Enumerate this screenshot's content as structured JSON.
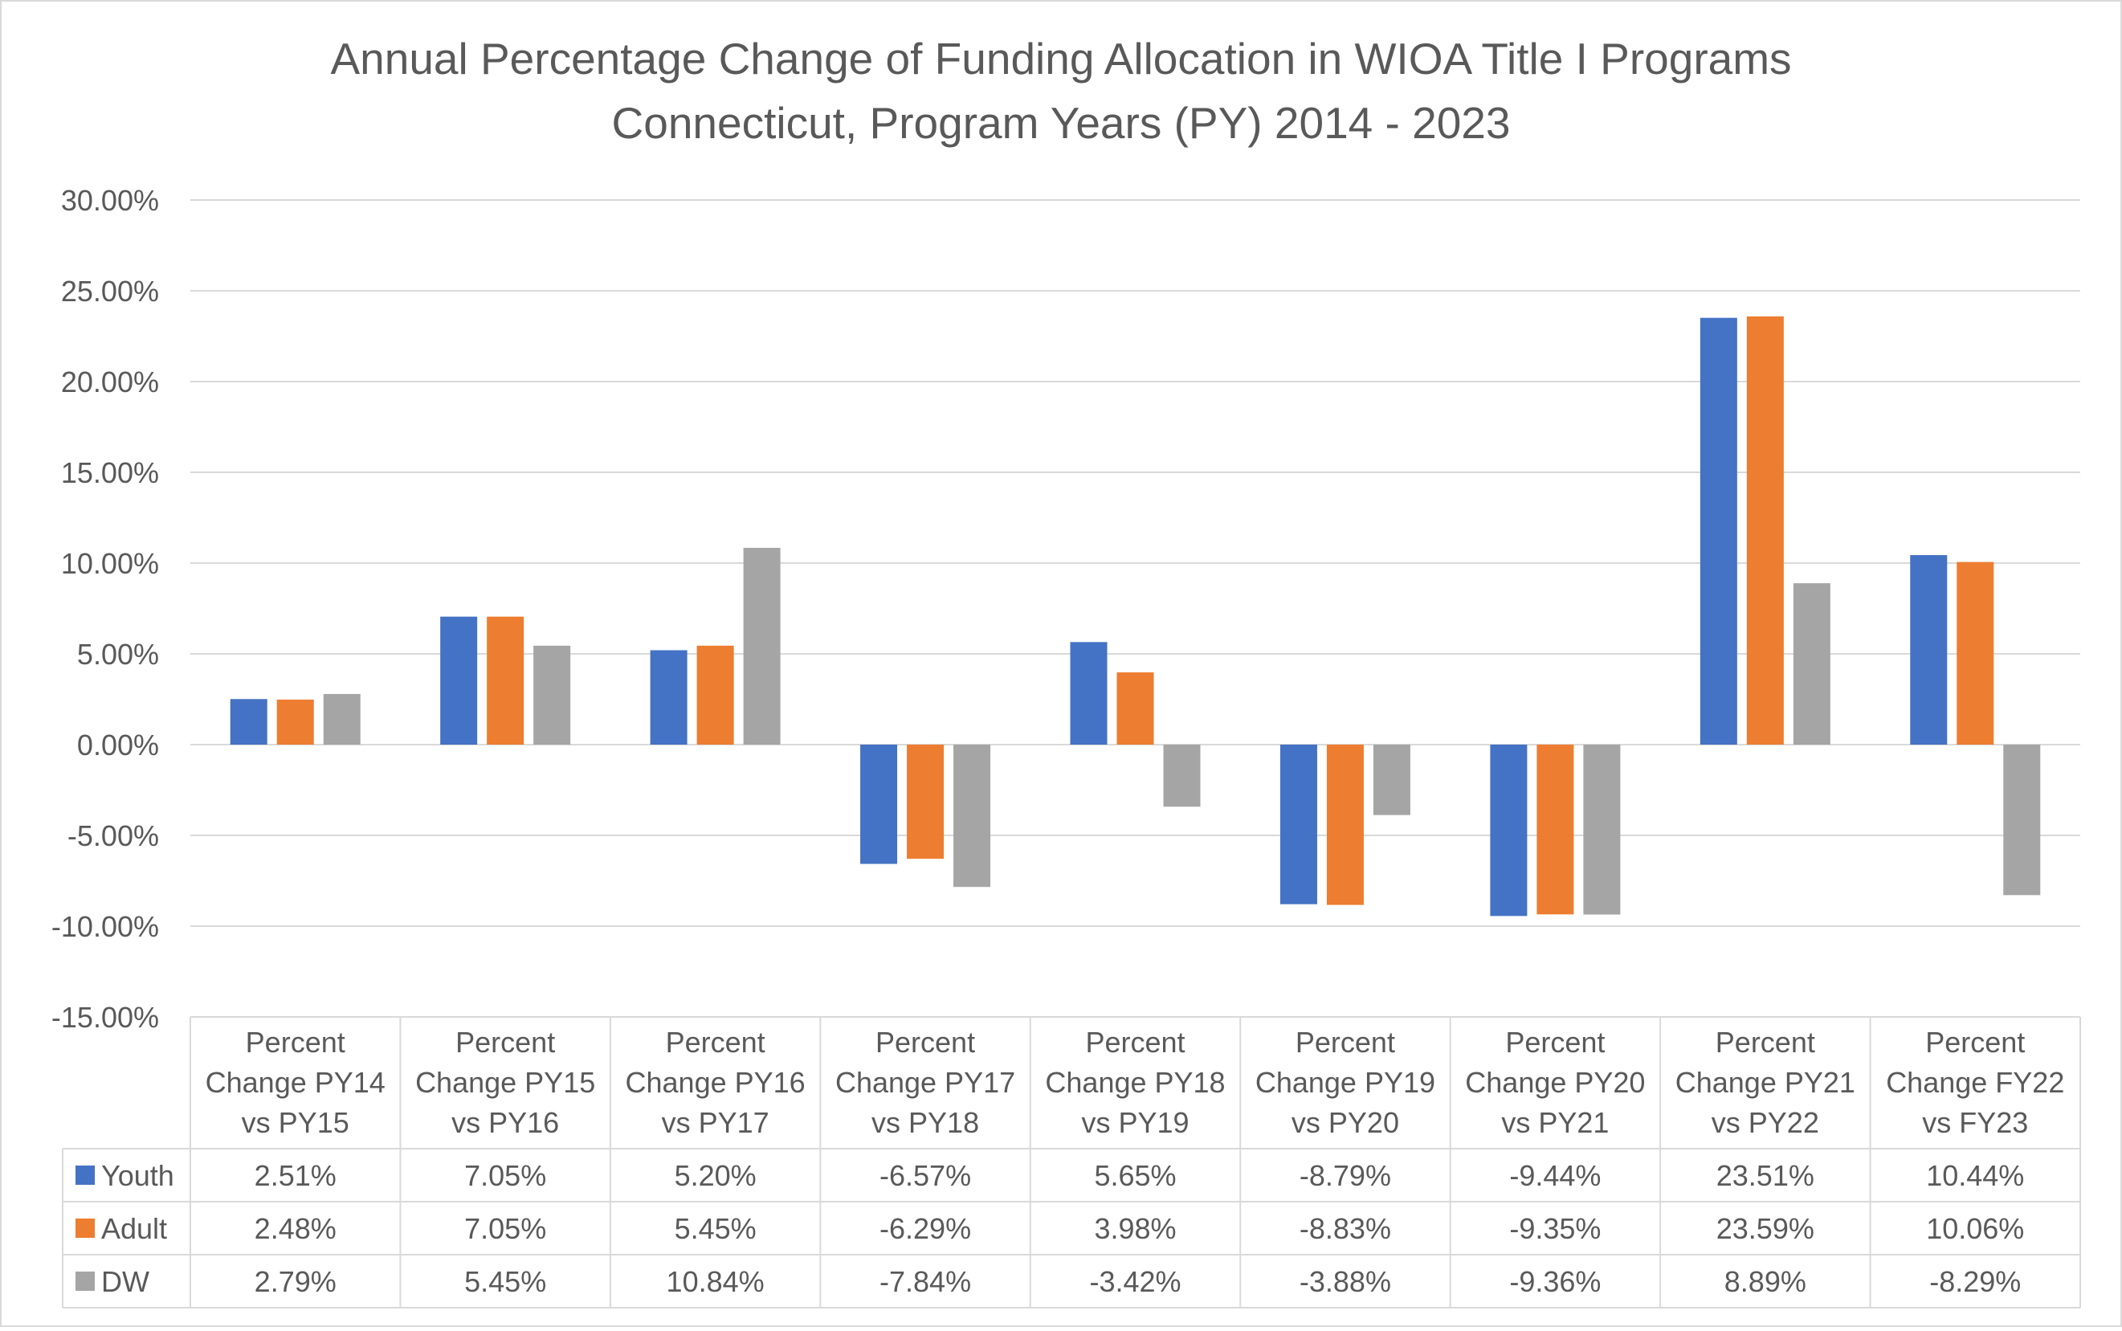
{
  "chart_data": {
    "type": "bar",
    "title": "Annual Percentage Change of Funding Allocation in WIOA Title I Programs",
    "subtitle": "Connecticut, Program Years (PY) 2014 - 2023",
    "xlabel": "",
    "ylabel": "",
    "ylim": [
      -15,
      30
    ],
    "yticks": [
      30,
      25,
      20,
      15,
      10,
      5,
      0,
      -5,
      -10,
      -15
    ],
    "ytick_labels": [
      "30.00%",
      "25.00%",
      "20.00%",
      "15.00%",
      "10.00%",
      "5.00%",
      "0.00%",
      "-5.00%",
      "-10.00%",
      "-15.00%"
    ],
    "grid": true,
    "legend_placement": "data-table",
    "categories": [
      [
        "Percent",
        "Change PY14",
        "vs PY15"
      ],
      [
        "Percent",
        "Change PY15",
        "vs PY16"
      ],
      [
        "Percent",
        "Change PY16",
        "vs PY17"
      ],
      [
        "Percent",
        "Change PY17",
        "vs PY18"
      ],
      [
        "Percent",
        "Change PY18",
        "vs PY19"
      ],
      [
        "Percent",
        "Change PY19",
        "vs PY20"
      ],
      [
        "Percent",
        "Change PY20",
        "vs PY21"
      ],
      [
        "Percent",
        "Change PY21",
        "vs PY22"
      ],
      [
        "Percent",
        "Change FY22",
        "vs FY23"
      ]
    ],
    "series": [
      {
        "name": "Youth",
        "color": "#4472C4",
        "values": [
          2.51,
          7.05,
          5.2,
          -6.57,
          5.65,
          -8.79,
          -9.44,
          23.51,
          10.44
        ],
        "labels": [
          "2.51%",
          "7.05%",
          "5.20%",
          "-6.57%",
          "5.65%",
          "-8.79%",
          "-9.44%",
          "23.51%",
          "10.44%"
        ]
      },
      {
        "name": "Adult",
        "color": "#ED7D31",
        "values": [
          2.48,
          7.05,
          5.45,
          -6.29,
          3.98,
          -8.83,
          -9.35,
          23.59,
          10.06
        ],
        "labels": [
          "2.48%",
          "7.05%",
          "5.45%",
          "-6.29%",
          "3.98%",
          "-8.83%",
          "-9.35%",
          "23.59%",
          "10.06%"
        ]
      },
      {
        "name": "DW",
        "color": "#A5A5A5",
        "values": [
          2.79,
          5.45,
          10.84,
          -7.84,
          -3.42,
          -3.88,
          -9.36,
          8.89,
          -8.29
        ],
        "labels": [
          "2.79%",
          "5.45%",
          "10.84%",
          "-7.84%",
          "-3.42%",
          "-3.88%",
          "-9.36%",
          "8.89%",
          "-8.29%"
        ]
      }
    ]
  }
}
